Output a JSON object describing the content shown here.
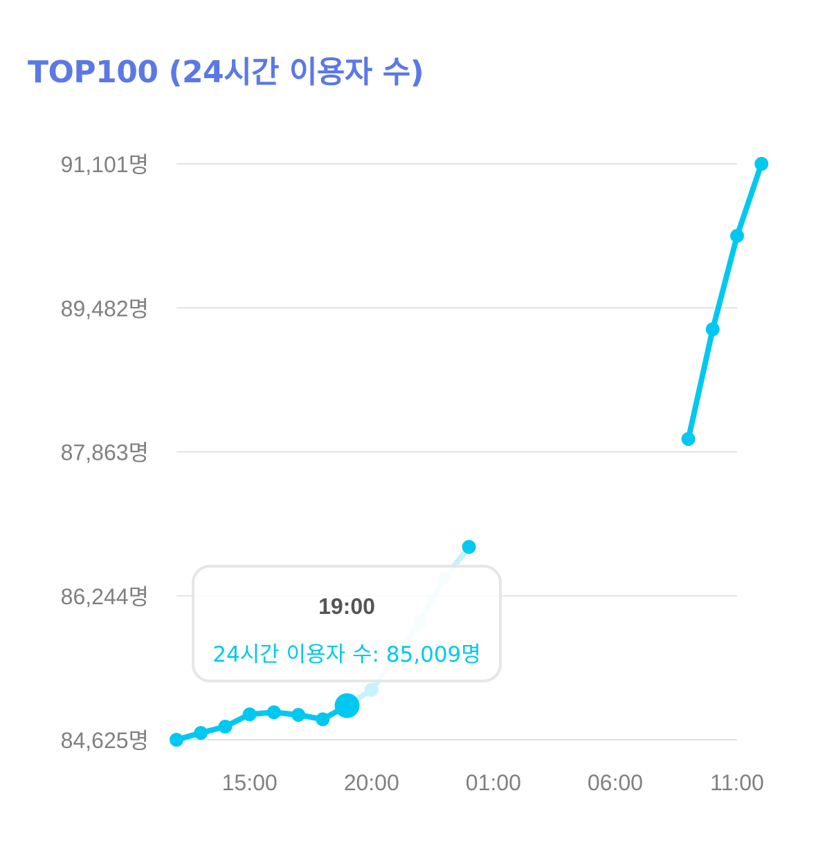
{
  "colors": {
    "title": "#5b78e6",
    "line": "#00c8f0",
    "line_faded": "#c8f2fb",
    "grid": "#e3e3e3",
    "tick_label": "#808080",
    "tooltip_border": "#e6e6e6"
  },
  "chart_data": {
    "type": "line",
    "title": "TOP100 (24시간 이용자 수)",
    "unit_suffix": "명",
    "series": [
      {
        "name": "24시간 이용자 수",
        "x": [
          12,
          13,
          14,
          15,
          16,
          17,
          18,
          19,
          20,
          21,
          22,
          23,
          24,
          33,
          34,
          35,
          36
        ],
        "values": [
          84625,
          84702,
          84773,
          84911,
          84934,
          84905,
          84855,
          85009,
          85186,
          85546,
          85957,
          86443,
          86794,
          88007,
          89241,
          90292,
          91101
        ],
        "gap_after_index": 12
      }
    ],
    "x_ticks": [
      {
        "value": 15,
        "label": "15:00"
      },
      {
        "value": 20,
        "label": "20:00"
      },
      {
        "value": 25,
        "label": "01:00"
      },
      {
        "value": 30,
        "label": "06:00"
      },
      {
        "value": 35,
        "label": "11:00"
      }
    ],
    "y_ticks": [
      {
        "value": 84625,
        "label": "84,625명"
      },
      {
        "value": 86244,
        "label": "86,244명"
      },
      {
        "value": 87863,
        "label": "87,863명"
      },
      {
        "value": 89482,
        "label": "89,482명"
      },
      {
        "value": 91101,
        "label": "91,101명"
      }
    ],
    "xlim": [
      12,
      35
    ],
    "ylim": [
      84625,
      91101
    ],
    "grid": true,
    "highlighted_index": 7,
    "faded_range": [
      8,
      12
    ],
    "tooltip": {
      "time": "19:00",
      "text": "24시간 이용자 수: 85,009명"
    }
  }
}
